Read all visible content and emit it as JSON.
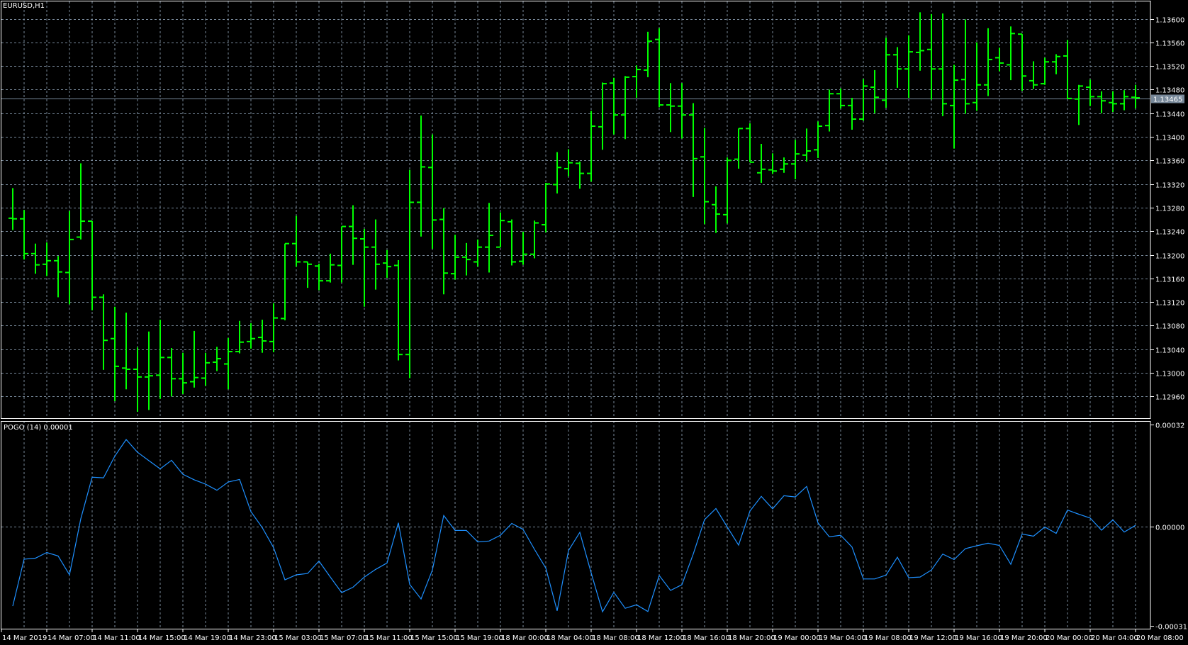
{
  "window": {
    "symbol_label": "EURUSD,H1"
  },
  "colors": {
    "background": "#000000",
    "bars": "#00ff00",
    "grid": "#778899",
    "frame": "#ffffff",
    "indicator_line": "#1e90ff",
    "current_price_line": "#778899",
    "current_price_label_bg": "#778899"
  },
  "chart_data": [
    {
      "type": "ohlc",
      "title": "EURUSD,H1",
      "grid": true,
      "ylim": [
        1.1293,
        1.13615
      ],
      "y_ticks": [
        "1.13600",
        "1.13560",
        "1.13520",
        "1.13480",
        "1.13440",
        "1.13400",
        "1.13360",
        "1.13320",
        "1.13280",
        "1.13240",
        "1.13200",
        "1.13160",
        "1.13120",
        "1.13080",
        "1.13040",
        "1.13000",
        "1.12960"
      ],
      "current_price": "1.13465",
      "x_ticks": [
        "14 Mar 2019",
        "14 Mar 07:00",
        "14 Mar 11:00",
        "14 Mar 15:00",
        "14 Mar 19:00",
        "14 Mar 23:00",
        "15 Mar 03:00",
        "15 Mar 07:00",
        "15 Mar 11:00",
        "15 Mar 15:00",
        "15 Mar 19:00",
        "18 Mar 00:00",
        "18 Mar 04:00",
        "18 Mar 08:00",
        "18 Mar 12:00",
        "18 Mar 16:00",
        "18 Mar 20:00",
        "19 Mar 00:00",
        "19 Mar 04:00",
        "19 Mar 08:00",
        "19 Mar 12:00",
        "19 Mar 16:00",
        "19 Mar 20:00",
        "20 Mar 00:00",
        "20 Mar 04:00",
        "20 Mar 08:00"
      ],
      "ohlc_fields": [
        "open",
        "high",
        "low",
        "close"
      ],
      "bars": [
        [
          1.13262,
          1.13313,
          1.13242,
          1.13261
        ],
        [
          1.13261,
          1.13276,
          1.13192,
          1.13202
        ],
        [
          1.13202,
          1.13219,
          1.13168,
          1.13183
        ],
        [
          1.13184,
          1.13221,
          1.13164,
          1.1319
        ],
        [
          1.1319,
          1.13198,
          1.13128,
          1.13171
        ],
        [
          1.1317,
          1.13274,
          1.13116,
          1.13226
        ],
        [
          1.1323,
          1.13355,
          1.13226,
          1.13257
        ],
        [
          1.13257,
          1.13257,
          1.13106,
          1.13128
        ],
        [
          1.13128,
          1.13133,
          1.13005,
          1.13055
        ],
        [
          1.13058,
          1.13112,
          1.12952,
          1.13011
        ],
        [
          1.13008,
          1.13102,
          1.12972,
          1.13006
        ],
        [
          1.13006,
          1.13043,
          1.12934,
          1.12993
        ],
        [
          1.12993,
          1.1307,
          1.12937,
          1.12995
        ],
        [
          1.12996,
          1.1309,
          1.12956,
          1.13026
        ],
        [
          1.13026,
          1.13042,
          1.1296,
          1.1299
        ],
        [
          1.1299,
          1.13034,
          1.12964,
          1.12983
        ],
        [
          1.12985,
          1.13071,
          1.12975,
          1.12992
        ],
        [
          1.12991,
          1.13034,
          1.12978,
          1.13017
        ],
        [
          1.13018,
          1.13044,
          1.13003,
          1.13024
        ],
        [
          1.13015,
          1.13059,
          1.12972,
          1.13036
        ],
        [
          1.13036,
          1.13088,
          1.13033,
          1.13052
        ],
        [
          1.13053,
          1.13084,
          1.13041,
          1.13058
        ],
        [
          1.1306,
          1.1309,
          1.13034,
          1.13054
        ],
        [
          1.13053,
          1.13118,
          1.13035,
          1.13093
        ],
        [
          1.13092,
          1.13219,
          1.13089,
          1.13219
        ],
        [
          1.13219,
          1.13266,
          1.1318,
          1.13188
        ],
        [
          1.13188,
          1.13188,
          1.13144,
          1.13184
        ],
        [
          1.13181,
          1.13185,
          1.1314,
          1.13156
        ],
        [
          1.13156,
          1.13202,
          1.13153,
          1.13183
        ],
        [
          1.13182,
          1.13248,
          1.13153,
          1.13248
        ],
        [
          1.13248,
          1.13284,
          1.13183,
          1.13228
        ],
        [
          1.13227,
          1.13244,
          1.13112,
          1.13213
        ],
        [
          1.13213,
          1.1326,
          1.13141,
          1.13184
        ],
        [
          1.13186,
          1.13208,
          1.13161,
          1.1318
        ],
        [
          1.13182,
          1.13191,
          1.13021,
          1.13031
        ],
        [
          1.13031,
          1.13344,
          1.12991,
          1.13289
        ],
        [
          1.13289,
          1.13436,
          1.13231,
          1.13349
        ],
        [
          1.13348,
          1.13404,
          1.1321,
          1.13259
        ],
        [
          1.1326,
          1.13279,
          1.13133,
          1.13169
        ],
        [
          1.13168,
          1.13234,
          1.13158,
          1.13196
        ],
        [
          1.13196,
          1.1322,
          1.13165,
          1.13192
        ],
        [
          1.13188,
          1.13226,
          1.1318,
          1.13213
        ],
        [
          1.13213,
          1.13288,
          1.1317,
          1.13233
        ],
        [
          1.13213,
          1.13272,
          1.13213,
          1.13258
        ],
        [
          1.13256,
          1.1326,
          1.13182,
          1.13188
        ],
        [
          1.13189,
          1.13239,
          1.13183,
          1.13201
        ],
        [
          1.13201,
          1.13258,
          1.13194,
          1.13254
        ],
        [
          1.13251,
          1.13322,
          1.13238,
          1.1332
        ],
        [
          1.13319,
          1.13374,
          1.13304,
          1.13348
        ],
        [
          1.13346,
          1.13379,
          1.13333,
          1.13356
        ],
        [
          1.13355,
          1.13358,
          1.13312,
          1.13338
        ],
        [
          1.13338,
          1.13444,
          1.13324,
          1.13418
        ],
        [
          1.13417,
          1.13492,
          1.13378,
          1.1349
        ],
        [
          1.13491,
          1.135,
          1.13404,
          1.13437
        ],
        [
          1.13437,
          1.13503,
          1.13396,
          1.13501
        ],
        [
          1.13502,
          1.13521,
          1.13466,
          1.13514
        ],
        [
          1.13513,
          1.13578,
          1.13501,
          1.13562
        ],
        [
          1.13565,
          1.13584,
          1.1345,
          1.13454
        ],
        [
          1.13454,
          1.13491,
          1.13408,
          1.13452
        ],
        [
          1.13452,
          1.13491,
          1.13397,
          1.13437
        ],
        [
          1.13437,
          1.13457,
          1.13298,
          1.13363
        ],
        [
          1.13366,
          1.13415,
          1.13252,
          1.1329
        ],
        [
          1.13285,
          1.13316,
          1.13237,
          1.13269
        ],
        [
          1.13268,
          1.13365,
          1.13253,
          1.1336
        ],
        [
          1.13362,
          1.13414,
          1.13346,
          1.13414
        ],
        [
          1.13414,
          1.13423,
          1.13357,
          1.13357
        ],
        [
          1.13339,
          1.13388,
          1.13322,
          1.13345
        ],
        [
          1.13344,
          1.13372,
          1.13337,
          1.13342
        ],
        [
          1.13345,
          1.13365,
          1.13339,
          1.13354
        ],
        [
          1.13354,
          1.13395,
          1.13328,
          1.13371
        ],
        [
          1.13369,
          1.13414,
          1.13358,
          1.13376
        ],
        [
          1.13378,
          1.13426,
          1.13364,
          1.13418
        ],
        [
          1.13419,
          1.1348,
          1.13409,
          1.13473
        ],
        [
          1.13473,
          1.13482,
          1.13448,
          1.13453
        ],
        [
          1.13453,
          1.13466,
          1.13412,
          1.1343
        ],
        [
          1.1343,
          1.13498,
          1.13427,
          1.13486
        ],
        [
          1.13484,
          1.13513,
          1.1344,
          1.13467
        ],
        [
          1.13462,
          1.13568,
          1.13449,
          1.13539
        ],
        [
          1.13539,
          1.13552,
          1.13483,
          1.13515
        ],
        [
          1.13515,
          1.13572,
          1.13466,
          1.13544
        ],
        [
          1.13543,
          1.13611,
          1.13512,
          1.13546
        ],
        [
          1.13548,
          1.13608,
          1.13463,
          1.13515
        ],
        [
          1.13515,
          1.13609,
          1.13435,
          1.13456
        ],
        [
          1.13453,
          1.13522,
          1.1338,
          1.13496
        ],
        [
          1.13497,
          1.13599,
          1.13439,
          1.13456
        ],
        [
          1.13458,
          1.1356,
          1.13444,
          1.13488
        ],
        [
          1.13488,
          1.13584,
          1.13469,
          1.13531
        ],
        [
          1.13534,
          1.13551,
          1.13511,
          1.13525
        ],
        [
          1.13522,
          1.13587,
          1.13496,
          1.13575
        ],
        [
          1.13574,
          1.13574,
          1.13478,
          1.13503
        ],
        [
          1.13495,
          1.13528,
          1.13481,
          1.13488
        ],
        [
          1.1349,
          1.13534,
          1.13488,
          1.13527
        ],
        [
          1.13527,
          1.1354,
          1.13506,
          1.13536
        ],
        [
          1.13537,
          1.13564,
          1.13464,
          1.13465
        ],
        [
          1.13464,
          1.13488,
          1.1342,
          1.13486
        ],
        [
          1.13484,
          1.13497,
          1.13452,
          1.13468
        ],
        [
          1.13468,
          1.13477,
          1.1344,
          1.13461
        ],
        [
          1.13458,
          1.13477,
          1.13442,
          1.13456
        ],
        [
          1.13456,
          1.13479,
          1.13445,
          1.13468
        ],
        [
          1.13467,
          1.13488,
          1.13448,
          1.13466
        ]
      ]
    },
    {
      "type": "line",
      "title": "POGO (14) 0.00001",
      "grid": true,
      "ylim": [
        -0.00031,
        0.00032
      ],
      "y_ticks": [
        "0.00032",
        "0.00000",
        "-0.00031"
      ],
      "values": [
        -0.000249,
        -0.000102,
        -9.9e-05,
        -8.1e-05,
        -9.2e-05,
        -0.000151,
        2.5e-05,
        0.000155,
        0.000153,
        0.000221,
        0.000273,
        0.000233,
        0.000207,
        0.000181,
        0.000208,
        0.000164,
        0.000147,
        0.000133,
        0.000114,
        0.00014,
        0.000148,
        4.7e-05,
        -3e-06,
        -6.6e-05,
        -0.000167,
        -0.000151,
        -0.000147,
        -0.000108,
        -0.000158,
        -0.000207,
        -0.00019,
        -0.000158,
        -0.000134,
        -0.000114,
        1.2e-05,
        -0.000181,
        -0.000227,
        -0.000136,
        3.5e-05,
        -1.2e-05,
        -1.2e-05,
        -4.8e-05,
        -4.5e-05,
        -2.7e-05,
        1e-05,
        -9e-06,
        -7.1e-05,
        -0.00013,
        -0.000264,
        -7.5e-05,
        -1.8e-05,
        -0.000145,
        -0.000267,
        -0.000206,
        -0.000256,
        -0.000245,
        -0.000266,
        -0.000153,
        -0.0002,
        -0.000182,
        -8.6e-05,
        2.2e-05,
        5.7e-05,
        -1e-06,
        -5.8e-05,
        4.9e-05,
        9.5e-05,
        5.6e-05,
        9.7e-05,
        9.3e-05,
        0.000126,
        1.2e-05,
        -3.2e-05,
        -2.7e-05,
        -6.4e-05,
        -0.000164,
        -0.000164,
        -0.000152,
        -9.6e-05,
        -0.00016,
        -0.000158,
        -0.000136,
        -8.6e-05,
        -0.000103,
        -6.9e-05,
        -6e-05,
        -5.2e-05,
        -5.9e-05,
        -0.000118,
        -2.3e-05,
        -3e-05,
        -1e-06,
        -2.1e-05,
        5.2e-05,
        3.9e-05,
        2.7e-05,
        -1.1e-05,
        2.1e-05,
        -1.7e-05,
        4e-06
      ]
    }
  ]
}
